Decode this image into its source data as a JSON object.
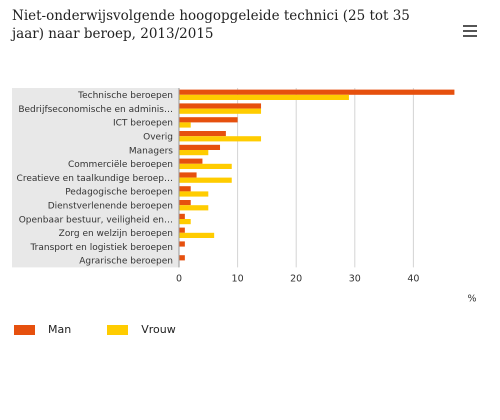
{
  "colors": {
    "man": "#e6500e",
    "vrouw": "#ffcc00",
    "label_band": "#e8e8e8",
    "grid": "#d4d4d4"
  },
  "menu": {
    "icon": "hamburger-menu-icon"
  },
  "chart_data": {
    "type": "bar",
    "orientation": "horizontal",
    "title": "Niet-onderwijsvolgende hoogopgeleide technici (25 tot 35 jaar) naar beroep, 2013/2015",
    "categories": [
      "Technische beroepen",
      "Bedrijfseconomische en adminis…",
      "ICT beroepen",
      "Overig",
      "Managers",
      "Commerciële beroepen",
      "Creatieve en taalkundige beroep…",
      "Pedagogische beroepen",
      "Dienstverlenende beroepen",
      "Openbaar bestuur, veiligheid en…",
      "Zorg en welzijn beroepen",
      "Transport en logistiek beroepen",
      "Agrarische beroepen"
    ],
    "series": [
      {
        "name": "Man",
        "values": [
          47,
          14,
          10,
          8,
          7,
          4,
          3,
          2,
          2,
          1,
          1,
          1,
          1
        ]
      },
      {
        "name": "Vrouw",
        "values": [
          29,
          14,
          2,
          14,
          5,
          9,
          9,
          5,
          5,
          2,
          6,
          0,
          0
        ]
      }
    ],
    "xlim": [
      0,
      50
    ],
    "xticks": [
      0,
      10,
      20,
      30,
      40
    ],
    "unit_label": "%",
    "grid": true,
    "legend": {
      "position": "bottom-left"
    }
  }
}
